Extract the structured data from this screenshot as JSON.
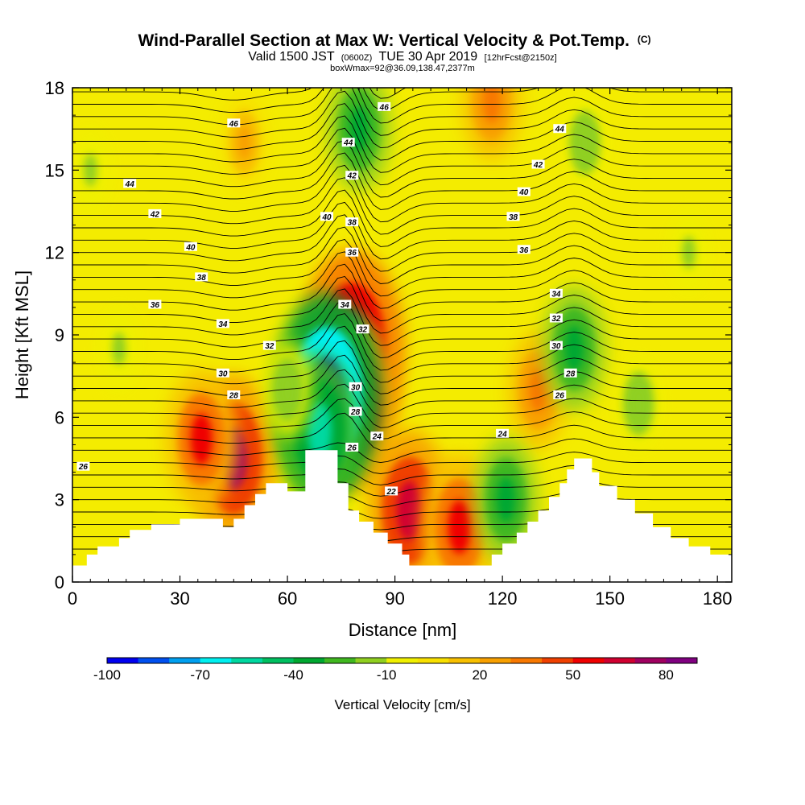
{
  "title": {
    "main": "Wind-Parallel Section at Max W: Vertical Velocity & Pot.Temp.",
    "main_suffix": "(C)",
    "line2_a": "Valid 1500 JST",
    "line2_b": "(0600Z)",
    "line2_c": "TUE 30 Apr 2019",
    "line2_d": "[12hrFcst@2150z]",
    "line3": "boxWmax=92@36.09,138.47,2377m"
  },
  "chart_data": {
    "type": "heatmap",
    "xlabel": "Distance [nm]",
    "ylabel": "Height [Kft MSL]",
    "xlim": [
      0,
      184
    ],
    "ylim": [
      0,
      18
    ],
    "xticks": [
      0,
      30,
      60,
      90,
      120,
      150,
      180
    ],
    "yticks": [
      0,
      3,
      6,
      9,
      12,
      15,
      18
    ],
    "colorbar": {
      "label": "Vertical Velocity [cm/s]",
      "tick_labels": [
        "-100",
        "-70",
        "-40",
        "-10",
        "20",
        "50",
        "80"
      ],
      "tick_values": [
        -100,
        -70,
        -40,
        -10,
        20,
        50,
        80
      ],
      "levels": [
        -100,
        -90,
        -80,
        -70,
        -60,
        -50,
        -40,
        -30,
        -20,
        -10,
        0,
        10,
        20,
        30,
        40,
        50,
        60,
        70,
        80,
        90
      ],
      "colors": [
        "#0000f0",
        "#0050f0",
        "#00a0f0",
        "#00f0f0",
        "#00d8a0",
        "#00c060",
        "#00a830",
        "#40b820",
        "#90d020",
        "#f0f000",
        "#f8e000",
        "#f8c000",
        "#f8a000",
        "#f87800",
        "#f04000",
        "#f00000",
        "#d00030",
        "#a00060",
        "#800080"
      ]
    },
    "terrain_kft": [
      [
        0,
        0.6
      ],
      [
        4,
        0.6
      ],
      [
        4,
        1.0
      ],
      [
        7,
        1.0
      ],
      [
        7,
        1.3
      ],
      [
        13,
        1.3
      ],
      [
        13,
        1.6
      ],
      [
        16,
        1.6
      ],
      [
        16,
        1.9
      ],
      [
        22,
        1.9
      ],
      [
        22,
        2.1
      ],
      [
        30,
        2.1
      ],
      [
        30,
        2.3
      ],
      [
        42,
        2.3
      ],
      [
        42,
        2.0
      ],
      [
        45,
        2.0
      ],
      [
        45,
        2.3
      ],
      [
        48,
        2.3
      ],
      [
        48,
        2.8
      ],
      [
        51,
        2.8
      ],
      [
        51,
        3.2
      ],
      [
        54,
        3.2
      ],
      [
        54,
        3.6
      ],
      [
        60,
        3.6
      ],
      [
        60,
        3.3
      ],
      [
        65,
        3.3
      ],
      [
        65,
        4.8
      ],
      [
        74,
        4.8
      ],
      [
        74,
        3.6
      ],
      [
        77,
        3.6
      ],
      [
        77,
        2.6
      ],
      [
        80,
        2.6
      ],
      [
        80,
        2.2
      ],
      [
        84,
        2.2
      ],
      [
        84,
        1.8
      ],
      [
        88,
        1.8
      ],
      [
        88,
        1.4
      ],
      [
        92,
        1.4
      ],
      [
        92,
        1.0
      ],
      [
        94,
        1.0
      ],
      [
        94,
        0.6
      ],
      [
        117,
        0.6
      ],
      [
        117,
        1.0
      ],
      [
        120,
        1.0
      ],
      [
        120,
        1.4
      ],
      [
        124,
        1.4
      ],
      [
        124,
        1.8
      ],
      [
        127,
        1.8
      ],
      [
        127,
        2.2
      ],
      [
        130,
        2.2
      ],
      [
        130,
        2.6
      ],
      [
        133,
        2.6
      ],
      [
        133,
        3.1
      ],
      [
        136,
        3.1
      ],
      [
        136,
        3.6
      ],
      [
        138,
        3.6
      ],
      [
        138,
        4.1
      ],
      [
        140,
        4.1
      ],
      [
        140,
        4.5
      ],
      [
        145,
        4.5
      ],
      [
        145,
        4.0
      ],
      [
        147,
        4.0
      ],
      [
        147,
        3.5
      ],
      [
        152,
        3.5
      ],
      [
        152,
        3.0
      ],
      [
        157,
        3.0
      ],
      [
        157,
        2.5
      ],
      [
        162,
        2.5
      ],
      [
        162,
        2.0
      ],
      [
        167,
        2.0
      ],
      [
        167,
        1.6
      ],
      [
        172,
        1.6
      ],
      [
        172,
        1.3
      ],
      [
        178,
        1.3
      ],
      [
        178,
        1.0
      ],
      [
        184,
        1.0
      ],
      [
        184,
        0
      ]
    ],
    "updraft_cells": [
      {
        "x": 45,
        "z": 4.5,
        "w": 70
      },
      {
        "x": 78,
        "z": 8.5,
        "w": 90
      },
      {
        "x": 78,
        "z": 6.5,
        "w": 75
      },
      {
        "x": 94,
        "z": 2.6,
        "w": 65
      },
      {
        "x": 108,
        "z": 2.0,
        "w": 55
      },
      {
        "x": 36,
        "z": 5.2,
        "w": 50
      },
      {
        "x": 130,
        "z": 7.0,
        "w": 35
      },
      {
        "x": 117,
        "z": 17.5,
        "w": 35
      },
      {
        "x": 48,
        "z": 16.0,
        "w": 20
      }
    ],
    "downdraft_cells": [
      {
        "x": 71,
        "z": 6.8,
        "w": -95
      },
      {
        "x": 69,
        "z": 5.5,
        "w": -60
      },
      {
        "x": 80,
        "z": 16.5,
        "w": -40
      },
      {
        "x": 121,
        "z": 3.0,
        "w": -40
      },
      {
        "x": 140,
        "z": 8.5,
        "w": -40
      },
      {
        "x": 143,
        "z": 16.0,
        "w": -20
      },
      {
        "x": 60,
        "z": 7.0,
        "w": -20
      },
      {
        "x": 172,
        "z": 12.0,
        "w": -15
      },
      {
        "x": 158,
        "z": 6.5,
        "w": -20
      },
      {
        "x": 5,
        "z": 15.0,
        "w": -15
      },
      {
        "x": 13,
        "z": 8.5,
        "w": -15
      }
    ],
    "isentrope_labels": [
      {
        "text": "46",
        "x": 45,
        "z": 16.7
      },
      {
        "text": "46",
        "x": 87,
        "z": 17.3
      },
      {
        "text": "44",
        "x": 16,
        "z": 14.5
      },
      {
        "text": "44",
        "x": 77,
        "z": 16.0
      },
      {
        "text": "44",
        "x": 136,
        "z": 16.5
      },
      {
        "text": "42",
        "x": 23,
        "z": 13.4
      },
      {
        "text": "42",
        "x": 78,
        "z": 14.8
      },
      {
        "text": "42",
        "x": 130,
        "z": 15.2
      },
      {
        "text": "40",
        "x": 33,
        "z": 12.2
      },
      {
        "text": "40",
        "x": 71,
        "z": 13.3
      },
      {
        "text": "40",
        "x": 126,
        "z": 14.2
      },
      {
        "text": "38",
        "x": 36,
        "z": 11.1
      },
      {
        "text": "38",
        "x": 78,
        "z": 13.1
      },
      {
        "text": "38",
        "x": 123,
        "z": 13.3
      },
      {
        "text": "36",
        "x": 23,
        "z": 10.1
      },
      {
        "text": "36",
        "x": 78,
        "z": 12.0
      },
      {
        "text": "36",
        "x": 126,
        "z": 12.1
      },
      {
        "text": "34",
        "x": 42,
        "z": 9.4
      },
      {
        "text": "34",
        "x": 76,
        "z": 10.1
      },
      {
        "text": "34",
        "x": 135,
        "z": 10.5
      },
      {
        "text": "32",
        "x": 55,
        "z": 8.6
      },
      {
        "text": "32",
        "x": 81,
        "z": 9.2
      },
      {
        "text": "32",
        "x": 135,
        "z": 9.6
      },
      {
        "text": "30",
        "x": 42,
        "z": 7.6
      },
      {
        "text": "30",
        "x": 79,
        "z": 7.1
      },
      {
        "text": "30",
        "x": 135,
        "z": 8.6
      },
      {
        "text": "28",
        "x": 45,
        "z": 6.8
      },
      {
        "text": "28",
        "x": 79,
        "z": 6.2
      },
      {
        "text": "28",
        "x": 139,
        "z": 7.6
      },
      {
        "text": "26",
        "x": 3,
        "z": 4.2
      },
      {
        "text": "26",
        "x": 78,
        "z": 4.9
      },
      {
        "text": "26",
        "x": 136,
        "z": 6.8
      },
      {
        "text": "24",
        "x": 85,
        "z": 5.3
      },
      {
        "text": "24",
        "x": 120,
        "z": 5.4
      },
      {
        "text": "22",
        "x": 89,
        "z": 3.3
      }
    ]
  }
}
